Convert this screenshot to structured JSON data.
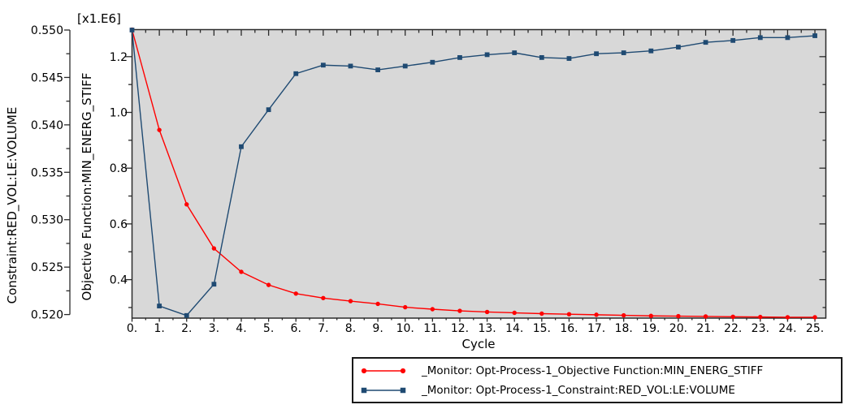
{
  "chart": {
    "x_axis_title": "Cycle",
    "multiplier_label": "[x1.E6]"
  },
  "legend": {
    "items": [
      {
        "label": "_Monitor: Opt-Process-1_Objective Function:MIN_ENERG_STIFF",
        "color": "#ff0000",
        "marker": "circle"
      },
      {
        "label": "_Monitor: Opt-Process-1_Constraint:RED_VOL:LE:VOLUME",
        "color": "#1f4a72",
        "marker": "square"
      }
    ]
  },
  "chart_data": {
    "type": "line",
    "x_label": "Cycle",
    "x": [
      0,
      1,
      2,
      3,
      4,
      5,
      6,
      7,
      8,
      9,
      10,
      11,
      12,
      13,
      14,
      15,
      16,
      17,
      18,
      19,
      20,
      21,
      22,
      23,
      24,
      25
    ],
    "x_tick_labels": [
      "0.",
      "1.",
      "2.",
      "3.",
      "4.",
      "5.",
      "6.",
      "7.",
      "8.",
      "9.",
      "10.",
      "11.",
      "12.",
      "13.",
      "14.",
      "15.",
      "16.",
      "17.",
      "18.",
      "19.",
      "20.",
      "21.",
      "22.",
      "23.",
      "24.",
      "25."
    ],
    "x_range": [
      0,
      25.4
    ],
    "left_axis": {
      "label": "Constraint:RED_VOL:LE:VOLUME",
      "tick_labels": [
        "0.550",
        "0.545",
        "0.540",
        "0.535",
        "0.530",
        "0.525",
        "0.520"
      ],
      "tick_values": [
        0.55,
        0.545,
        0.54,
        0.535,
        0.53,
        0.525,
        0.52
      ],
      "minor_step": 0.0025,
      "range": [
        0.52,
        0.55
      ]
    },
    "inner_axis": {
      "label": "Objective Function:MIN_ENERG_STIFF",
      "multiplier": "[x1.E6]",
      "tick_labels": [
        "1.2",
        "1.0",
        "0.8",
        "0.6",
        "0.4"
      ],
      "tick_values": [
        1.2,
        1.0,
        0.8,
        0.6,
        0.4
      ],
      "minor_values": [
        1.1,
        0.9,
        0.7,
        0.5,
        0.3
      ],
      "range": [
        0.262,
        1.297
      ]
    },
    "series": [
      {
        "name": "_Monitor: Opt-Process-1_Objective Function:MIN_ENERG_STIFF",
        "axis": "inner",
        "color": "#ff0000",
        "marker": "circle",
        "values": [
          1.297,
          0.937,
          0.67,
          0.512,
          0.428,
          0.381,
          0.35,
          0.334,
          0.323,
          0.313,
          0.301,
          0.294,
          0.288,
          0.284,
          0.281,
          0.278,
          0.276,
          0.274,
          0.272,
          0.27,
          0.269,
          0.268,
          0.267,
          0.266,
          0.265,
          0.265
        ]
      },
      {
        "name": "_Monitor: Opt-Process-1_Constraint:RED_VOL:LE:VOLUME",
        "axis": "left",
        "color": "#1f4a72",
        "marker": "square",
        "values": [
          0.55,
          0.5209,
          0.5199,
          0.5232,
          0.5377,
          0.5416,
          0.5454,
          0.5463,
          0.5462,
          0.5458,
          0.5462,
          0.5466,
          0.5471,
          0.5474,
          0.5476,
          0.5471,
          0.547,
          0.5475,
          0.5476,
          0.5478,
          0.5482,
          0.5487,
          0.5489,
          0.5492,
          0.5492,
          0.5494
        ]
      }
    ],
    "plot_background": "#d8d8d8",
    "legend_position": "bottom-right",
    "grid": false
  }
}
